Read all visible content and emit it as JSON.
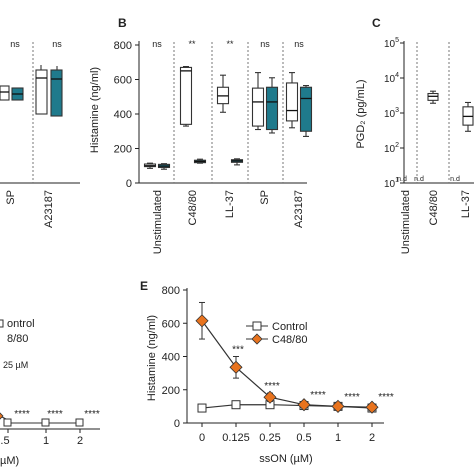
{
  "colors": {
    "control": "#ffffff",
    "treated": "#1f7a8c",
    "c4880": "#e8731e",
    "axis": "#222222"
  },
  "panel_a": {
    "sig": [
      "ns",
      "ns"
    ],
    "categories": [
      "SP",
      "A23187"
    ]
  },
  "panel_b": {
    "letter": "B",
    "ylabel": "Histamine (ng/ml)",
    "yticks": [
      "800",
      "600",
      "400",
      "200",
      "0"
    ],
    "categories": [
      "Unstimulated",
      "C48/80",
      "LL-37",
      "SP",
      "A23187"
    ],
    "sig": [
      "ns",
      "**",
      "**",
      "ns",
      "ns"
    ]
  },
  "panel_c": {
    "letter": "C",
    "ylabel": "PGD₂ (pg/mL)",
    "ytick_base": [
      "10",
      "10",
      "10",
      "10",
      "10"
    ],
    "ytick_exp": [
      "5",
      "4",
      "3",
      "2",
      "1"
    ],
    "categories": [
      "Unstimulated",
      "C48/80",
      "LL-37"
    ],
    "nd": [
      "n.d",
      "n.d",
      "n.d"
    ]
  },
  "panel_d": {
    "legend": [
      "ontrol",
      "8/80"
    ],
    "note": "25 µM",
    "xticks": [
      ".5",
      "1",
      "2"
    ],
    "xlabel": "µM)",
    "sig": [
      "****",
      "****",
      "****"
    ]
  },
  "panel_e": {
    "letter": "E",
    "ylabel": "Histamine (ng/ml)",
    "xlabel": "ssON (µM)",
    "yticks": [
      "800",
      "600",
      "400",
      "200",
      "0"
    ],
    "xticks": [
      "0",
      "0.125",
      "0.25",
      "0.5",
      "1",
      "2"
    ],
    "legend": [
      "Control",
      "C48/80"
    ],
    "sig": [
      "***",
      "****",
      "****",
      "****",
      "****"
    ]
  },
  "chart_data": [
    {
      "type": "box",
      "panel": "B",
      "ylabel": "Histamine (ng/ml)",
      "ylim": [
        0,
        800
      ],
      "categories": [
        "Unstimulated",
        "C48/80",
        "LL-37",
        "SP",
        "A23187"
      ],
      "series": [
        {
          "boxes": [
            {
              "min": 85,
              "q1": 95,
              "median": 100,
              "q3": 110,
              "max": 115
            },
            {
              "min": 330,
              "q1": 340,
              "median": 650,
              "q3": 670,
              "max": 675
            },
            {
              "min": 410,
              "q1": 460,
              "median": 505,
              "q3": 555,
              "max": 625
            },
            {
              "min": 310,
              "q1": 330,
              "median": 470,
              "q3": 550,
              "max": 640
            },
            {
              "min": 320,
              "q1": 360,
              "median": 420,
              "q3": 580,
              "max": 640
            }
          ]
        },
        {
          "boxes": [
            {
              "min": 80,
              "q1": 90,
              "median": 98,
              "q3": 108,
              "max": 112
            },
            {
              "min": 115,
              "q1": 118,
              "median": 125,
              "q3": 132,
              "max": 138
            },
            {
              "min": 105,
              "q1": 120,
              "median": 128,
              "q3": 135,
              "max": 140
            },
            {
              "min": 290,
              "q1": 310,
              "median": 470,
              "q3": 555,
              "max": 610
            },
            {
              "min": 270,
              "q1": 300,
              "median": 490,
              "q3": 555,
              "max": 565
            }
          ]
        }
      ]
    },
    {
      "type": "box",
      "panel": "C",
      "ylabel": "PGD₂ (pg/mL)",
      "yscale": "log",
      "ylim": [
        10,
        100000
      ],
      "categories": [
        "Unstimulated",
        "C48/80",
        "LL-37"
      ],
      "series": [
        {
          "boxes": [
            null,
            {
              "min": 1900,
              "q1": 2300,
              "median": 3000,
              "q3": 3600,
              "max": 4200
            },
            {
              "min": 300,
              "q1": 450,
              "median": 800,
              "q3": 1500,
              "max": 2000
            }
          ]
        }
      ]
    },
    {
      "type": "line",
      "panel": "E",
      "xlabel": "ssON (µM)",
      "ylabel": "Histamine (ng/ml)",
      "ylim": [
        0,
        800
      ],
      "x": [
        "0",
        "0.125",
        "0.25",
        "0.5",
        "1",
        "2"
      ],
      "series": [
        {
          "name": "Control",
          "values": [
            90,
            110,
            110,
            105,
            100,
            90
          ],
          "err": [
            10,
            10,
            10,
            10,
            10,
            10
          ]
        },
        {
          "name": "C48/80",
          "values": [
            615,
            335,
            155,
            110,
            100,
            95
          ],
          "err": [
            110,
            65,
            25,
            15,
            10,
            10
          ]
        }
      ]
    },
    {
      "type": "line",
      "panel": "D",
      "x": [
        ".5",
        "1",
        "2"
      ],
      "series": [
        {
          "name": "Control",
          "values": [
            5,
            5,
            5
          ]
        },
        {
          "name": "C48/80",
          "values": [
            15,
            8,
            5
          ]
        }
      ]
    }
  ]
}
